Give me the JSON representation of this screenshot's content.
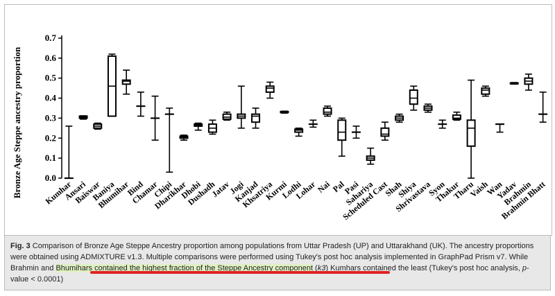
{
  "chart_data": {
    "type": "boxplot",
    "title": "",
    "xlabel": "",
    "ylabel": "Bronze Age Steppe ancestry proportion",
    "ylim": [
      0.0,
      0.7
    ],
    "yticks": [
      "0.0",
      "0.1",
      "0.2",
      "0.3",
      "0.4",
      "0.5",
      "0.6",
      "0.7"
    ],
    "categories": [
      "Kumhar",
      "Ansari",
      "Baiswar",
      "Baniya",
      "Bhumihar",
      "Bind",
      "Chamar",
      "Chipi",
      "Dharikhar",
      "Dhobi",
      "Dushadh",
      "Jatav",
      "Jogi",
      "Kanjad",
      "Khsatriya",
      "Kurmi",
      "Lodhi",
      "Lohar",
      "Nai",
      "Pal",
      "Pasi",
      "Sahariya",
      "Scheduled Cast",
      "Shah",
      "Shiya",
      "Shrivastava",
      "Syon",
      "Thakur",
      "Tharu",
      "Vaish",
      "Wan",
      "Yadav",
      "Brahmin",
      "Brahmin Bhatt"
    ],
    "boxes": [
      {
        "min": 0.0,
        "q1": 0.0,
        "median": 0.0,
        "q3": 0.0,
        "max": 0.26
      },
      {
        "min": 0.295,
        "q1": 0.3,
        "median": 0.305,
        "q3": 0.31,
        "max": 0.312
      },
      {
        "min": 0.245,
        "q1": 0.25,
        "median": 0.26,
        "q3": 0.27,
        "max": 0.275
      },
      {
        "min": 0.31,
        "q1": 0.31,
        "median": 0.46,
        "q3": 0.61,
        "max": 0.62
      },
      {
        "min": 0.42,
        "q1": 0.47,
        "median": 0.485,
        "q3": 0.49,
        "max": 0.54
      },
      {
        "min": 0.31,
        "q1": 0.36,
        "median": 0.36,
        "q3": 0.36,
        "max": 0.43
      },
      {
        "min": 0.19,
        "q1": 0.3,
        "median": 0.3,
        "q3": 0.3,
        "max": 0.41
      },
      {
        "min": 0.03,
        "q1": 0.32,
        "median": 0.32,
        "q3": 0.32,
        "max": 0.35
      },
      {
        "min": 0.19,
        "q1": 0.2,
        "median": 0.205,
        "q3": 0.21,
        "max": 0.215
      },
      {
        "min": 0.24,
        "q1": 0.26,
        "median": 0.265,
        "q3": 0.27,
        "max": 0.275
      },
      {
        "min": 0.22,
        "q1": 0.23,
        "median": 0.25,
        "q3": 0.27,
        "max": 0.29
      },
      {
        "min": 0.29,
        "q1": 0.295,
        "median": 0.305,
        "q3": 0.32,
        "max": 0.33
      },
      {
        "min": 0.25,
        "q1": 0.3,
        "median": 0.31,
        "q3": 0.32,
        "max": 0.46
      },
      {
        "min": 0.25,
        "q1": 0.28,
        "median": 0.31,
        "q3": 0.32,
        "max": 0.35
      },
      {
        "min": 0.4,
        "q1": 0.43,
        "median": 0.45,
        "q3": 0.46,
        "max": 0.48
      },
      {
        "min": 0.325,
        "q1": 0.328,
        "median": 0.33,
        "q3": 0.333,
        "max": 0.335
      },
      {
        "min": 0.21,
        "q1": 0.23,
        "median": 0.24,
        "q3": 0.245,
        "max": 0.25
      },
      {
        "min": 0.255,
        "q1": 0.27,
        "median": 0.27,
        "q3": 0.27,
        "max": 0.29
      },
      {
        "min": 0.31,
        "q1": 0.32,
        "median": 0.33,
        "q3": 0.35,
        "max": 0.36
      },
      {
        "min": 0.11,
        "q1": 0.19,
        "median": 0.23,
        "q3": 0.29,
        "max": 0.3
      },
      {
        "min": 0.2,
        "q1": 0.23,
        "median": 0.23,
        "q3": 0.23,
        "max": 0.26
      },
      {
        "min": 0.07,
        "q1": 0.09,
        "median": 0.1,
        "q3": 0.11,
        "max": 0.15
      },
      {
        "min": 0.19,
        "q1": 0.21,
        "median": 0.22,
        "q3": 0.25,
        "max": 0.28
      },
      {
        "min": 0.28,
        "q1": 0.29,
        "median": 0.3,
        "q3": 0.31,
        "max": 0.32
      },
      {
        "min": 0.34,
        "q1": 0.37,
        "median": 0.4,
        "q3": 0.44,
        "max": 0.46
      },
      {
        "min": 0.33,
        "q1": 0.34,
        "median": 0.35,
        "q3": 0.36,
        "max": 0.37
      },
      {
        "min": 0.25,
        "q1": 0.27,
        "median": 0.27,
        "q3": 0.27,
        "max": 0.29
      },
      {
        "min": 0.29,
        "q1": 0.295,
        "median": 0.3,
        "q3": 0.315,
        "max": 0.33
      },
      {
        "min": 0.0,
        "q1": 0.16,
        "median": 0.25,
        "q3": 0.29,
        "max": 0.49
      },
      {
        "min": 0.41,
        "q1": 0.42,
        "median": 0.44,
        "q3": 0.45,
        "max": 0.46
      },
      {
        "min": 0.23,
        "q1": 0.27,
        "median": 0.27,
        "q3": 0.27,
        "max": 0.27
      },
      {
        "min": 0.47,
        "q1": 0.472,
        "median": 0.474,
        "q3": 0.476,
        "max": 0.478
      },
      {
        "min": 0.44,
        "q1": 0.47,
        "median": 0.485,
        "q3": 0.5,
        "max": 0.52
      },
      {
        "min": 0.28,
        "q1": 0.32,
        "median": 0.32,
        "q3": 0.32,
        "max": 0.43
      }
    ]
  },
  "caption": {
    "fig_label": "Fig. 3",
    "text_1": " Comparison of Bronze Age Steppe Ancestry proportion among populations from Uttar Pradesh (UP) and Uttarakhand (UK). The ancestry proportions were obtained using ADMIXTURE v1.3. Multiple comparisons were performed using Tukey's post hoc analysis implemented in GraphPad Prism v7. While Brahmin and ",
    "highlight": "Bhumihars contained the highest fraction of the Steppe Ancestry component",
    "text_2": " (",
    "k_label": "k3",
    "text_3": ") Kumhars contained the least (Tukey's post hoc analysis, ",
    "p_label": "p",
    "text_4": "-value < 0.0001)"
  },
  "colors": {
    "axis": "#000000",
    "highlight": "#dff0c2",
    "underline": "#e02222",
    "caption_bg": "#e8e8e8"
  }
}
